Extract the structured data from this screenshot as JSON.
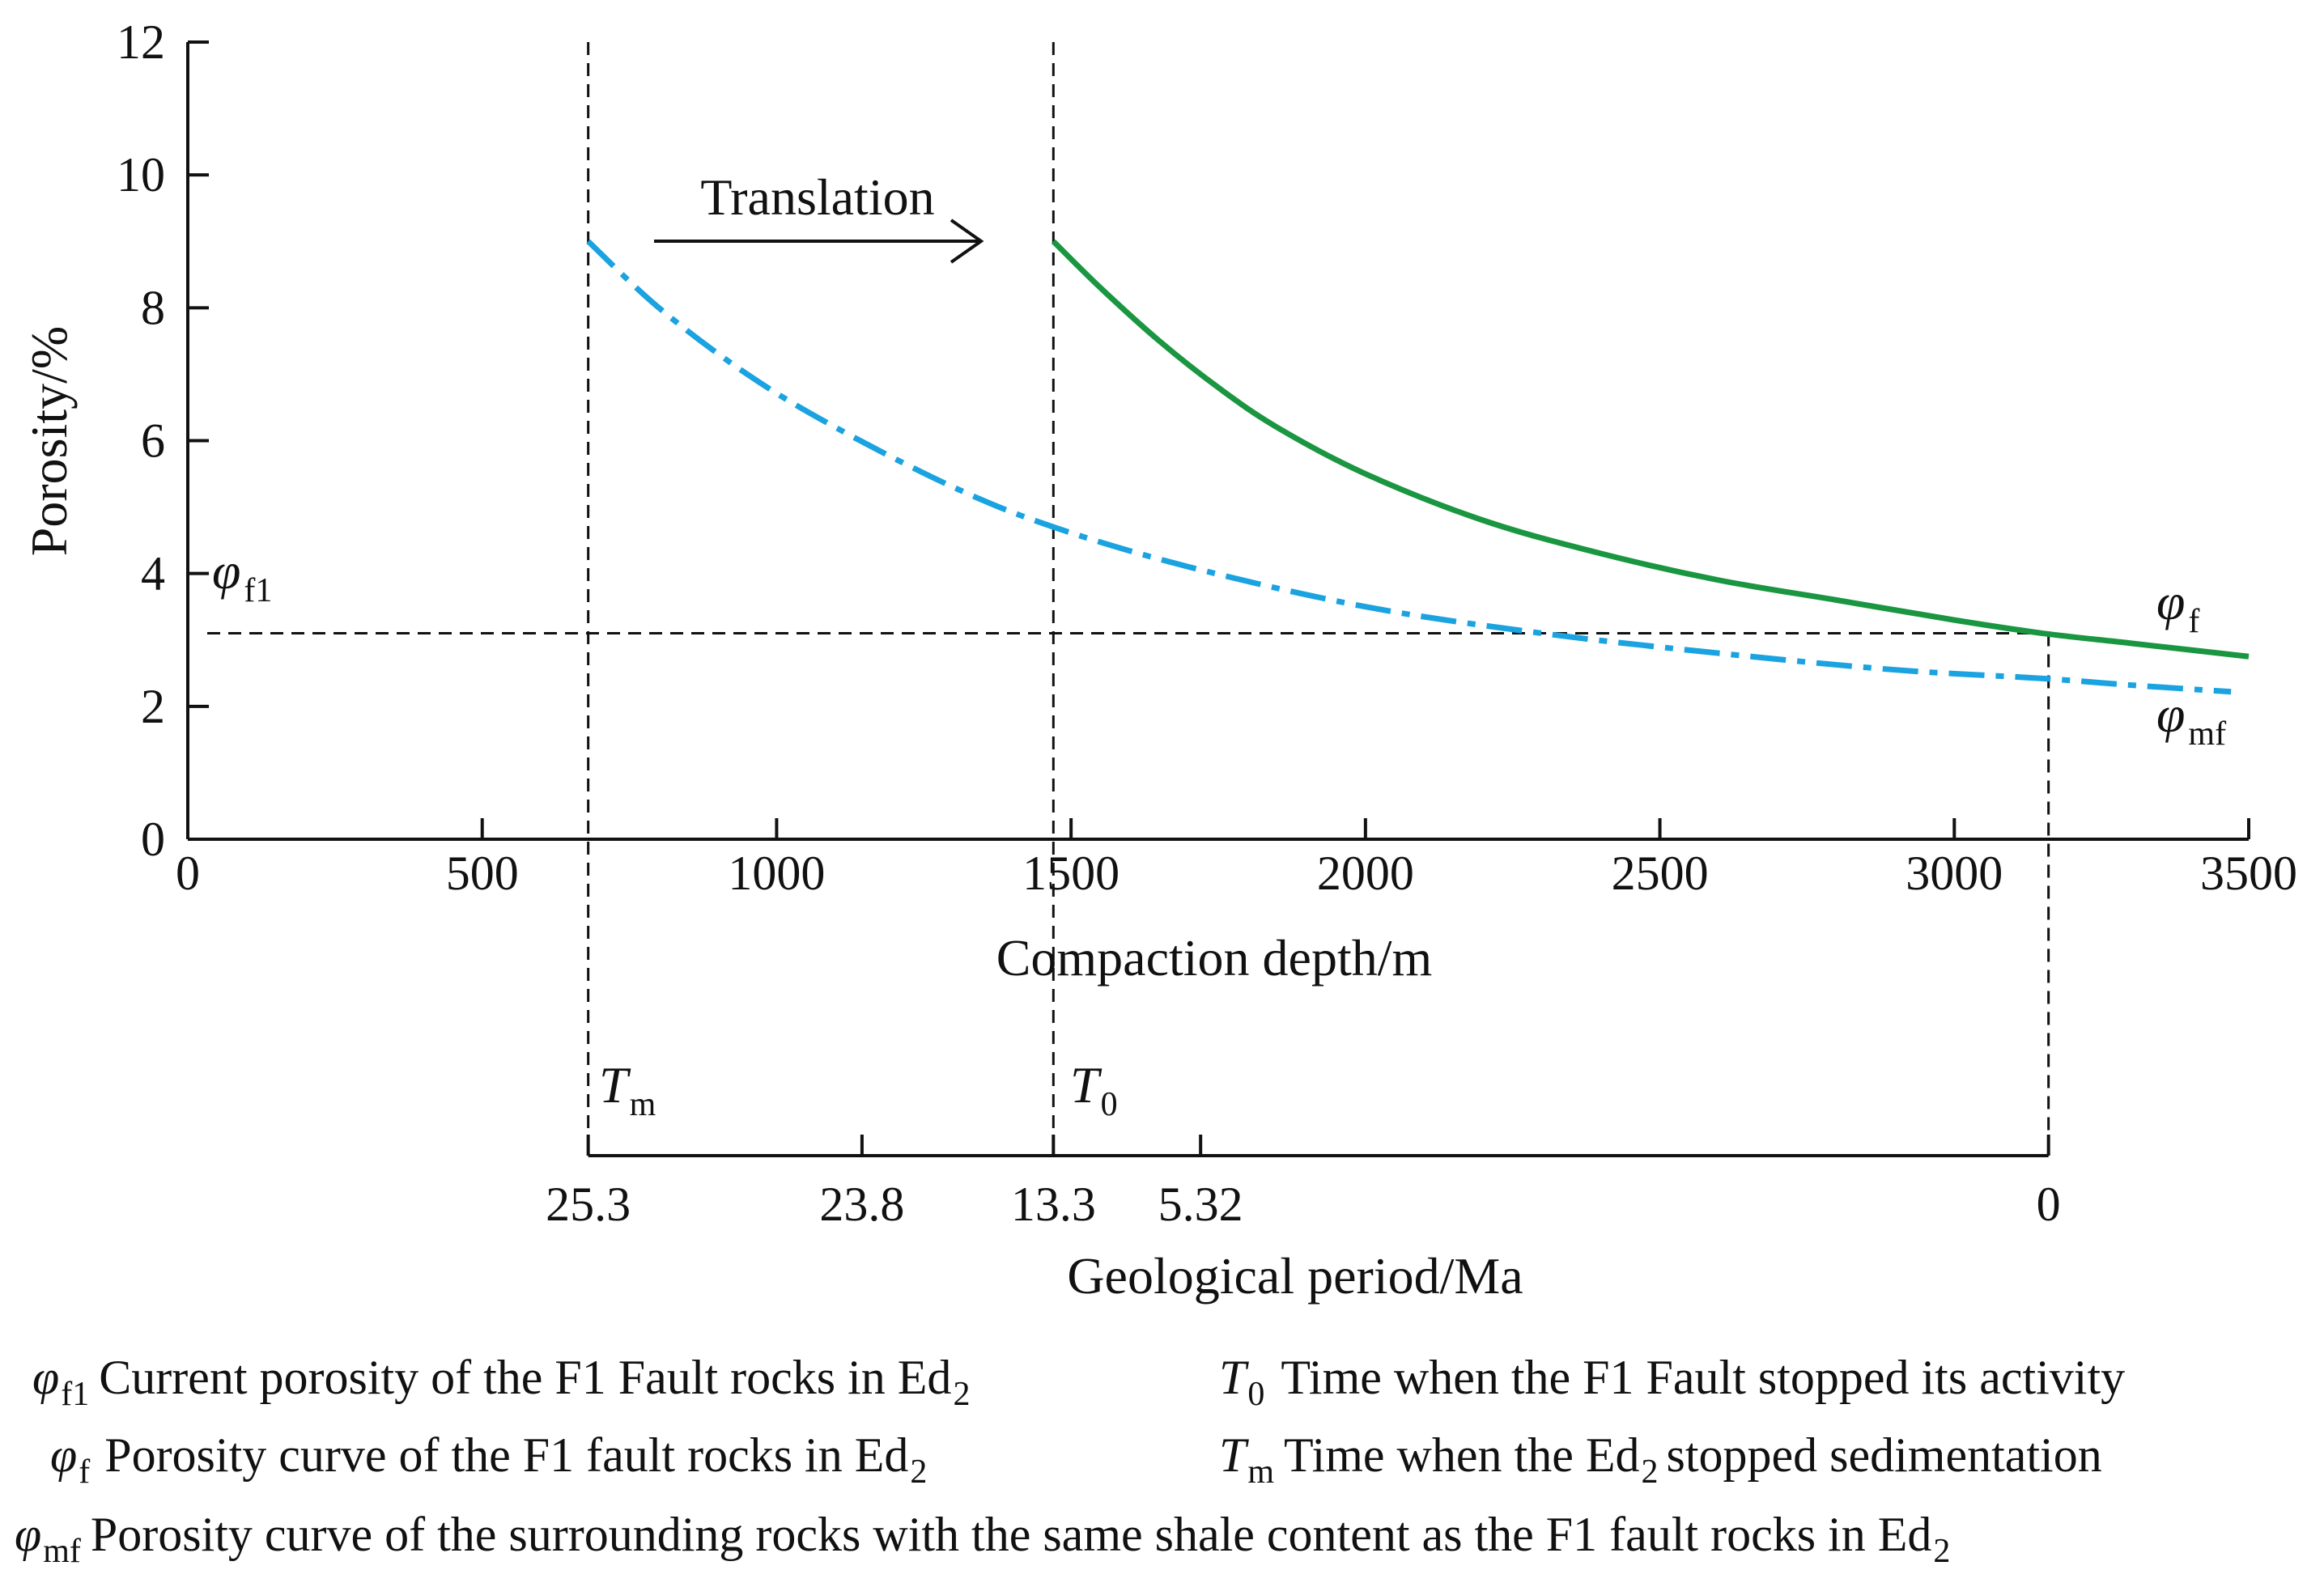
{
  "chart_data": {
    "type": "line",
    "ylabel": "Porosity/%",
    "xlabel": "Compaction depth/m",
    "xlim": [
      0,
      3500
    ],
    "ylim": [
      0,
      12
    ],
    "x_ticks": [
      0,
      500,
      1000,
      1500,
      2000,
      2500,
      3000,
      3500
    ],
    "y_ticks": [
      0,
      2,
      4,
      6,
      8,
      10,
      12
    ],
    "series": [
      {
        "name": "φf",
        "style": "solid",
        "color": "#1a9641",
        "x": [
          1470,
          1550,
          1650,
          1750,
          1850,
          2000,
          2200,
          2400,
          2600,
          2800,
          3000,
          3150,
          3300,
          3500
        ],
        "y": [
          9.0,
          8.3,
          7.5,
          6.8,
          6.2,
          5.5,
          4.8,
          4.3,
          3.9,
          3.6,
          3.3,
          3.1,
          2.95,
          2.75
        ]
      },
      {
        "name": "φmf",
        "style": "dash-dot",
        "color": "#1aa3e0",
        "x": [
          680,
          800,
          950,
          1100,
          1300,
          1470,
          1700,
          2000,
          2300,
          2600,
          2900,
          3150,
          3300,
          3470
        ],
        "y": [
          9.0,
          8.0,
          7.0,
          6.2,
          5.3,
          4.7,
          4.1,
          3.5,
          3.1,
          2.8,
          2.55,
          2.42,
          2.32,
          2.22
        ]
      }
    ],
    "reference_lines": {
      "phi_f1_y": 3.1,
      "Tm_depth": 680,
      "T0_depth": 1470,
      "current_depth": 3160
    },
    "geologic_axis": {
      "label": "Geological period/Ma",
      "ticks": [
        {
          "label": "25.3",
          "depth": 680
        },
        {
          "label": "23.8",
          "depth": 1145
        },
        {
          "label": "13.3",
          "depth": 1470
        },
        {
          "label": "5.32",
          "depth": 1720
        },
        {
          "label": "0",
          "depth": 3160
        }
      ]
    },
    "annotations": {
      "translation": "Translation",
      "phi_sym": "φ",
      "f1_sub": "f1",
      "f_sub": "f",
      "mf_sub": "mf",
      "T_sym": "T",
      "m_sub": "m",
      "zero_sub": "0"
    }
  },
  "legend": {
    "phi_f1_text": "Current porosity of the F1 Fault rocks in Ed",
    "phi_f1_sub": "2",
    "T0_text": "Time when the F1 Fault stopped its activity",
    "phi_f_text": "Porosity curve of the F1 fault rocks in Ed",
    "phi_f_sub": "2",
    "Tm_text_a": "Time when the Ed",
    "Tm_sub": "2",
    "Tm_text_b": "stopped sedimentation",
    "phi_mf_text": "Porosity curve of the surrounding rocks with the same shale content as the F1 fault rocks in Ed",
    "phi_mf_sub": "2"
  }
}
